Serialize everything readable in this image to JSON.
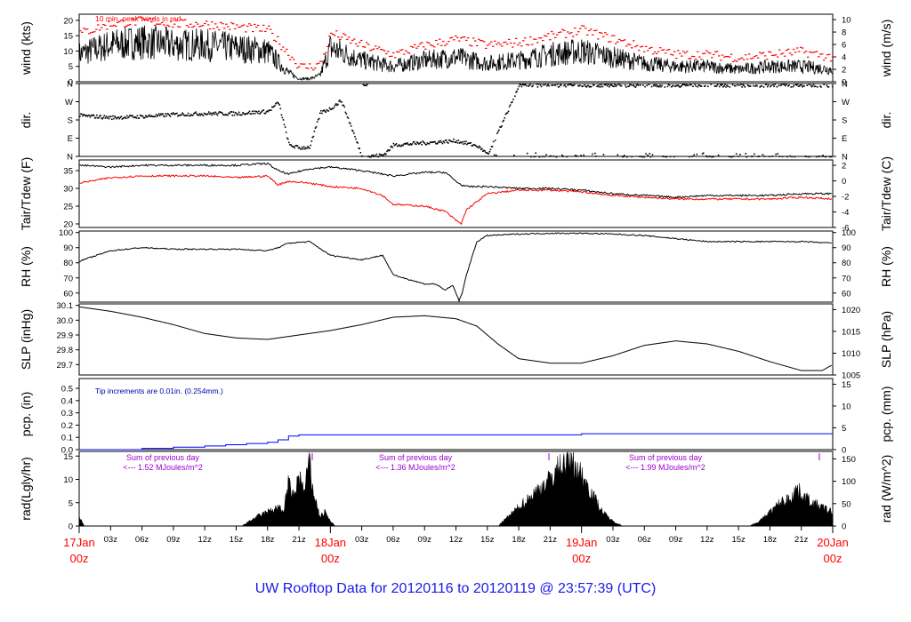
{
  "title": "UW Rooftop Data for 20120116  to  20120119 @ 23:57:39  (UTC)",
  "colors": {
    "title": "#1a1ae6",
    "peak_wind": "#ff0000",
    "dewpoint": "#ff0000",
    "precip": "#0000ff",
    "annotation_pcp": "#0000aa",
    "annotation_rad": "#9900cc",
    "date_label": "#ff0000",
    "trace": "#000000"
  },
  "chart_data": [
    {
      "type": "line",
      "panel": "wind",
      "ylabel_left": "wind (kts)",
      "ylabel_right": "wind (m/s)",
      "ylim": [
        0,
        22
      ],
      "yticks": [
        0,
        5,
        10,
        15,
        20
      ],
      "right_ticks": [
        0,
        2,
        4,
        6,
        8,
        10
      ],
      "annotation": "10 min. peak winds in red",
      "x_hours": [
        0,
        3,
        6,
        9,
        12,
        15,
        18,
        20,
        21,
        22,
        23,
        24,
        27,
        30,
        33,
        36,
        39,
        42,
        45,
        48,
        51,
        54,
        57,
        60,
        63,
        66,
        69,
        72
      ],
      "series": [
        {
          "name": "wind",
          "values": [
            9,
            12,
            13,
            12,
            12,
            11,
            10,
            3,
            1,
            1,
            2,
            11,
            7,
            5,
            7,
            8,
            6,
            7,
            9,
            10,
            8,
            6,
            5,
            5,
            4,
            5,
            5,
            4
          ]
        },
        {
          "name": "10 min. peak winds",
          "values": [
            16,
            19,
            20,
            19,
            19,
            18,
            17,
            9,
            5,
            5,
            6,
            16,
            12,
            9,
            12,
            14,
            12,
            13,
            15,
            17,
            14,
            11,
            9,
            9,
            8,
            9,
            10,
            8
          ]
        }
      ]
    },
    {
      "type": "scatter",
      "panel": "direction",
      "ylabel_left": "dir.",
      "ylabel_right": "dir.",
      "tick_labels": [
        "N",
        "E",
        "S",
        "W",
        "N"
      ],
      "ylim": [
        0,
        360
      ],
      "x_hours": [
        0,
        3,
        6,
        9,
        12,
        15,
        18,
        19,
        20,
        21,
        22,
        23,
        24,
        25,
        27,
        29,
        30,
        33,
        36,
        38,
        39,
        42,
        45,
        48,
        51,
        54,
        57,
        60,
        63,
        66,
        69,
        72
      ],
      "values": [
        205,
        195,
        200,
        210,
        215,
        215,
        225,
        270,
        60,
        45,
        50,
        220,
        240,
        280,
        0,
        10,
        60,
        70,
        80,
        55,
        10,
        355,
        355,
        355,
        355,
        355,
        355,
        355,
        355,
        355,
        355,
        355
      ]
    },
    {
      "type": "line",
      "panel": "temperature",
      "ylabel_left": "Tair/Tdew (F)",
      "ylabel_right": "Tair/Tdew (C)",
      "ylim": [
        19,
        38
      ],
      "yticks": [
        20,
        25,
        30,
        35
      ],
      "right_ticks": [
        -6,
        -4,
        -2,
        0,
        2
      ],
      "x_hours": [
        0,
        3,
        6,
        9,
        12,
        15,
        18,
        19,
        20,
        22,
        24,
        27,
        29,
        30,
        33,
        35,
        36,
        36.5,
        37,
        39,
        42,
        45,
        48,
        51,
        54,
        57,
        60,
        63,
        66,
        69,
        72
      ],
      "series": [
        {
          "name": "Tair",
          "values": [
            36.5,
            36,
            36.5,
            36.5,
            36.5,
            36.5,
            37,
            35,
            34,
            35.5,
            36,
            35,
            34,
            33.5,
            34.5,
            34.5,
            32,
            31,
            30.5,
            30.5,
            30,
            30,
            29.5,
            28.5,
            28,
            27.5,
            28,
            28,
            28,
            28.5,
            28.5
          ]
        },
        {
          "name": "Tdew",
          "values": [
            31.5,
            33,
            33.5,
            33.5,
            33.5,
            33,
            33.5,
            31,
            32,
            31.5,
            30.5,
            30,
            28,
            25.5,
            25,
            23.5,
            21,
            20,
            24,
            28.5,
            29.5,
            29.5,
            29,
            28,
            27.5,
            27,
            27,
            27,
            27,
            27.5,
            27
          ]
        }
      ]
    },
    {
      "type": "line",
      "panel": "humidity",
      "ylabel_left": "RH (%)",
      "ylabel_right": "RH (%)",
      "ylim": [
        54,
        101
      ],
      "yticks": [
        60,
        70,
        80,
        90,
        100
      ],
      "right_ticks": [
        60,
        70,
        80,
        90,
        100
      ],
      "x_hours": [
        0,
        3,
        6,
        9,
        12,
        15,
        18,
        19,
        20,
        22,
        24,
        27,
        29,
        30,
        33,
        34,
        35,
        35.7,
        36,
        36.3,
        36.6,
        37,
        38,
        39,
        42,
        45,
        48,
        51,
        54,
        57,
        60,
        63,
        66,
        69,
        72
      ],
      "values": [
        81,
        88,
        90,
        89,
        89,
        89,
        88,
        90,
        93,
        94,
        85,
        82,
        85,
        72,
        66,
        66,
        62,
        65,
        60,
        55,
        60,
        72,
        94,
        98,
        99,
        99.5,
        99.5,
        99,
        98,
        96,
        94,
        94,
        94,
        94,
        93
      ]
    },
    {
      "type": "line",
      "panel": "pressure",
      "ylabel_left": "SLP (inHg)",
      "ylabel_right": "SLP (hPa)",
      "ylim": [
        29.63,
        30.11
      ],
      "yticks": [
        29.7,
        29.8,
        29.9,
        30.0,
        30.1
      ],
      "right_ticks": [
        1005,
        1010,
        1015,
        1020
      ],
      "x_hours": [
        0,
        3,
        6,
        9,
        12,
        15,
        18,
        21,
        24,
        27,
        30,
        33,
        36,
        38,
        40,
        42,
        45,
        48,
        51,
        54,
        57,
        60,
        63,
        66,
        69,
        71,
        72
      ],
      "values": [
        30.09,
        30.06,
        30.02,
        29.97,
        29.91,
        29.88,
        29.87,
        29.9,
        29.93,
        29.97,
        30.02,
        30.03,
        30.01,
        29.96,
        29.84,
        29.74,
        29.71,
        29.71,
        29.76,
        29.83,
        29.86,
        29.84,
        29.79,
        29.72,
        29.66,
        29.66,
        29.7
      ]
    },
    {
      "type": "area",
      "panel": "precipitation",
      "ylabel_left": "pcp. (in)",
      "ylabel_right": "pcp. (mm)",
      "ylim": [
        0,
        0.58
      ],
      "yticks": [
        0.0,
        0.1,
        0.2,
        0.3,
        0.4,
        0.5
      ],
      "right_ticks": [
        0,
        5,
        10,
        15
      ],
      "annotation": "Tip increments are 0.01in. (0.254mm.)",
      "x_hours": [
        0,
        6,
        9,
        12,
        14,
        16,
        18,
        19,
        20,
        21,
        22,
        24,
        47,
        48,
        72
      ],
      "values": [
        0,
        0.01,
        0.02,
        0.03,
        0.04,
        0.05,
        0.06,
        0.08,
        0.11,
        0.12,
        0.12,
        0.12,
        0.12,
        0.13,
        0.13
      ]
    },
    {
      "type": "area",
      "panel": "radiation",
      "ylabel_left": "rad(Lgly/hr)",
      "ylabel_right": "rad (W/m^2)",
      "ylim": [
        0,
        16
      ],
      "yticks": [
        0,
        5,
        10,
        15
      ],
      "right_ticks": [
        0,
        50,
        100,
        150
      ],
      "x_hours": [
        0,
        0.5,
        15.5,
        17,
        18,
        19,
        19.5,
        20,
        20.5,
        21,
        21.5,
        22,
        22.3,
        23,
        23.5,
        24,
        24.5,
        40,
        41,
        42,
        43,
        44,
        45,
        46,
        47,
        48,
        49,
        50,
        51,
        52,
        64,
        65,
        66,
        67,
        68,
        68.5,
        69,
        70,
        71,
        72
      ],
      "values": [
        2,
        0,
        0,
        2,
        3,
        4,
        3,
        9,
        6,
        11,
        7,
        14,
        8,
        2,
        3,
        1,
        0,
        0,
        2,
        4,
        6,
        8,
        10,
        13,
        14,
        11,
        7,
        3,
        1,
        0,
        0,
        1,
        3,
        5,
        6,
        8,
        7,
        5,
        4,
        3
      ],
      "day_sums": [
        {
          "title": "Sum of previous day",
          "value": "<--- 1.52 MJoules/m^2"
        },
        {
          "title": "Sum of previous day",
          "value": "<--- 1.36 MJoules/m^2"
        },
        {
          "title": "Sum of previous day",
          "value": "<--- 1.99 MJoules/m^2"
        }
      ]
    }
  ],
  "x_axis": {
    "hour_ticks": [
      "03z",
      "06z",
      "09z",
      "12z",
      "15z",
      "18z",
      "21z",
      "03z",
      "06z",
      "09z",
      "12z",
      "15z",
      "18z",
      "21z",
      "03z",
      "06z",
      "09z",
      "12z",
      "15z",
      "18z",
      "21z"
    ],
    "day_labels": [
      {
        "date": "17Jan",
        "hour": "00z"
      },
      {
        "date": "18Jan",
        "hour": "00z"
      },
      {
        "date": "19Jan",
        "hour": "00z"
      },
      {
        "date": "20Jan",
        "hour": "00z"
      }
    ]
  }
}
